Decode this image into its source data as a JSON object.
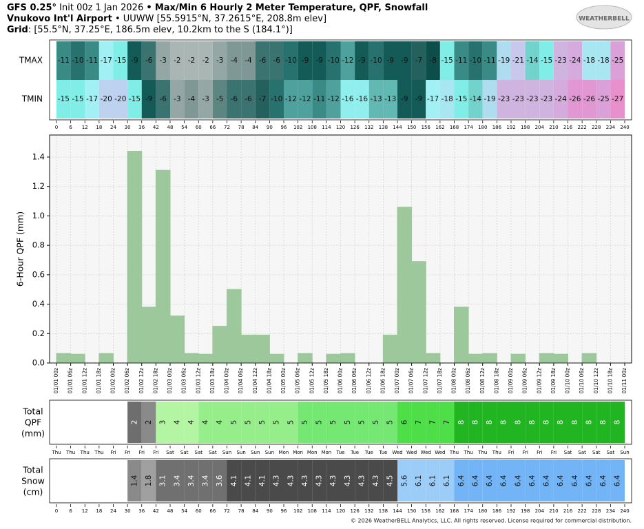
{
  "header": {
    "model": "GFS 0.25°",
    "init": "Init 00z 1 Jan 2026",
    "sep": "•",
    "title": "Max/Min 6 Hourly 2 Meter Temperature, QPF, Snowfall",
    "station": "Vnukovo Int'l Airport",
    "station_details": "UUWW [55.5915°N, 37.2615°E, 208.8m elev]",
    "grid_label": "Grid",
    "grid_details": ": [55.5°N, 37.25°E, 186.5m elev, 10.2km to the S (184.1°)]"
  },
  "logo": "WEATHERBELL",
  "footer": "© 2026 WeatherBELL Analytics, LLC. All rights reserved. License required for commercial distribution.",
  "chart_data": [
    {
      "type": "heatmap",
      "xlim": [
        0,
        240
      ],
      "xticks": [
        0,
        6,
        12,
        18,
        24,
        30,
        36,
        42,
        48,
        54,
        60,
        66,
        72,
        78,
        84,
        90,
        96,
        102,
        108,
        114,
        120,
        126,
        132,
        138,
        144,
        150,
        156,
        162,
        168,
        174,
        180,
        186,
        192,
        198,
        204,
        210,
        216,
        222,
        228,
        234,
        240
      ],
      "series": [
        {
          "name": "TMAX",
          "values": [
            -11,
            -10,
            -11,
            -17,
            -15,
            -9,
            -6,
            -3,
            -2,
            -2,
            -2,
            -3,
            -4,
            -4,
            -6,
            -6,
            -10,
            -9,
            -9,
            -10,
            -12,
            -9,
            -10,
            -9,
            -9,
            -7,
            -8,
            -15,
            -11,
            -10,
            -11,
            -19,
            -21,
            -14,
            -15,
            -23,
            -24,
            -18,
            -18,
            -25
          ]
        },
        {
          "name": "TMIN",
          "values": [
            -15,
            -15,
            -17,
            -20,
            -20,
            -15,
            -9,
            -6,
            -3,
            -4,
            -3,
            -5,
            -6,
            -6,
            -7,
            -10,
            -12,
            -12,
            -11,
            -12,
            -16,
            -16,
            -13,
            -13,
            -9,
            -9,
            -17,
            -18,
            -15,
            -14,
            -19,
            -23,
            -23,
            -23,
            -23,
            -24,
            -26,
            -26,
            -25,
            -27
          ]
        }
      ]
    },
    {
      "type": "bar",
      "ylabel": "6-Hour QPF (mm)",
      "color": "#9dc89b",
      "grid": true,
      "xlim": [
        0,
        240
      ],
      "ylim": [
        0,
        1.55
      ],
      "yticks": [
        {
          "value": 0,
          "label": "0.0"
        },
        0.2,
        0.4,
        0.6,
        0.8,
        {
          "value": 1,
          "label": "1.0"
        },
        1.2,
        1.4
      ],
      "xticks": [
        {
          "value": 0,
          "label": "01/01 00z"
        },
        {
          "value": 6,
          "label": "01/01 06z"
        },
        {
          "value": 12,
          "label": "01/01 12z"
        },
        {
          "value": 18,
          "label": "01/01 18z"
        },
        {
          "value": 24,
          "label": "01/02 00z"
        },
        {
          "value": 30,
          "label": "01/02 06z"
        },
        {
          "value": 36,
          "label": "01/02 12z"
        },
        {
          "value": 42,
          "label": "01/02 18z"
        },
        {
          "value": 48,
          "label": "01/03 00z"
        },
        {
          "value": 54,
          "label": "01/03 06z"
        },
        {
          "value": 60,
          "label": "01/03 12z"
        },
        {
          "value": 66,
          "label": "01/03 18z"
        },
        {
          "value": 72,
          "label": "01/04 00z"
        },
        {
          "value": 78,
          "label": "01/04 06z"
        },
        {
          "value": 84,
          "label": "01/04 12z"
        },
        {
          "value": 90,
          "label": "01/04 18z"
        },
        {
          "value": 96,
          "label": "01/05 00z"
        },
        {
          "value": 102,
          "label": "01/05 06z"
        },
        {
          "value": 108,
          "label": "01/05 12z"
        },
        {
          "value": 114,
          "label": "01/05 18z"
        },
        {
          "value": 120,
          "label": "01/06 00z"
        },
        {
          "value": 126,
          "label": "01/06 06z"
        },
        {
          "value": 132,
          "label": "01/06 12z"
        },
        {
          "value": 138,
          "label": "01/06 18z"
        },
        {
          "value": 144,
          "label": "01/07 00z"
        },
        {
          "value": 150,
          "label": "01/07 06z"
        },
        {
          "value": 156,
          "label": "01/07 12z"
        },
        {
          "value": 162,
          "label": "01/07 18z"
        },
        {
          "value": 168,
          "label": "01/08 00z"
        },
        {
          "value": 174,
          "label": "01/08 06z"
        },
        {
          "value": 180,
          "label": "01/08 12z"
        },
        {
          "value": 186,
          "label": "01/08 18z"
        },
        {
          "value": 192,
          "label": "01/09 00z"
        },
        {
          "value": 198,
          "label": "01/09 06z"
        },
        {
          "value": 204,
          "label": "01/09 12z"
        },
        {
          "value": 210,
          "label": "01/09 18z"
        },
        {
          "value": 216,
          "label": "01/10 00z"
        },
        {
          "value": 222,
          "label": "01/10 06z"
        },
        {
          "value": 228,
          "label": "01/10 12z"
        },
        {
          "value": 234,
          "label": "01/10 18z"
        },
        {
          "value": 240,
          "label": "01/11 00z"
        }
      ],
      "values": [
        0.065,
        0.06,
        0,
        0.065,
        0,
        1.44,
        0.38,
        1.31,
        0.32,
        0.065,
        0.06,
        0.25,
        0.5,
        0.19,
        0.19,
        0.06,
        0,
        0.065,
        0,
        0.06,
        0.065,
        0,
        0,
        0.19,
        1.06,
        0.69,
        0.065,
        0,
        0.38,
        0.06,
        0.065,
        0,
        0.06,
        0,
        0.065,
        0.06,
        0,
        0.065,
        0,
        0
      ]
    },
    {
      "type": "table-row",
      "label": [
        "Total",
        "QPF",
        "(mm)"
      ],
      "xlim": [
        0,
        240
      ],
      "xticks": [
        {
          "value": 0,
          "label": "Thu"
        },
        {
          "value": 6,
          "label": "Thu"
        },
        {
          "value": 12,
          "label": "Thu"
        },
        {
          "value": 18,
          "label": "Thu"
        },
        {
          "value": 24,
          "label": "Fri"
        },
        {
          "value": 30,
          "label": "Fri"
        },
        {
          "value": 36,
          "label": "Fri"
        },
        {
          "value": 42,
          "label": "Fri"
        },
        {
          "value": 48,
          "label": "Sat"
        },
        {
          "value": 54,
          "label": "Sat"
        },
        {
          "value": 60,
          "label": "Sat"
        },
        {
          "value": 66,
          "label": "Sat"
        },
        {
          "value": 72,
          "label": "Sun"
        },
        {
          "value": 78,
          "label": "Sun"
        },
        {
          "value": 84,
          "label": "Sun"
        },
        {
          "value": 90,
          "label": "Sun"
        },
        {
          "value": 96,
          "label": "Mon"
        },
        {
          "value": 102,
          "label": "Mon"
        },
        {
          "value": 108,
          "label": "Mon"
        },
        {
          "value": 114,
          "label": "Mon"
        },
        {
          "value": 120,
          "label": "Tue"
        },
        {
          "value": 126,
          "label": "Tue"
        },
        {
          "value": 132,
          "label": "Tue"
        },
        {
          "value": 138,
          "label": "Tue"
        },
        {
          "value": 144,
          "label": "Wed"
        },
        {
          "value": 150,
          "label": "Wed"
        },
        {
          "value": 156,
          "label": "Wed"
        },
        {
          "value": 162,
          "label": "Wed"
        },
        {
          "value": 168,
          "label": "Thu"
        },
        {
          "value": 174,
          "label": "Thu"
        },
        {
          "value": 180,
          "label": "Thu"
        },
        {
          "value": 186,
          "label": "Thu"
        },
        {
          "value": 192,
          "label": "Fri"
        },
        {
          "value": 198,
          "label": "Fri"
        },
        {
          "value": 204,
          "label": "Fri"
        },
        {
          "value": 210,
          "label": "Fri"
        },
        {
          "value": 216,
          "label": "Sat"
        },
        {
          "value": 222,
          "label": "Sat"
        },
        {
          "value": 228,
          "label": "Sat"
        },
        {
          "value": 234,
          "label": "Sat"
        },
        {
          "value": 240,
          "label": "Sun"
        }
      ],
      "values": [
        null,
        null,
        null,
        null,
        null,
        2,
        2,
        3,
        4,
        4,
        4,
        4,
        5,
        5,
        5,
        5,
        5,
        5,
        5,
        5,
        5,
        5,
        5,
        5,
        6,
        7,
        7,
        7,
        8,
        8,
        8,
        8,
        8,
        8,
        8,
        8,
        8,
        8,
        8,
        8
      ],
      "colors": [
        null,
        null,
        null,
        null,
        null,
        "#6e6e6e",
        "#8a8a8a",
        "#b4f5a4",
        "#b4f5a4",
        "#b4f5a4",
        "#96ee8a",
        "#96ee8a",
        "#96ee8a",
        "#96ee8a",
        "#96ee8a",
        "#96ee8a",
        "#96ee8a",
        "#74e872",
        "#74e872",
        "#74e872",
        "#74e872",
        "#74e872",
        "#74e872",
        "#74e872",
        "#4ede48",
        "#4ede48",
        "#4ede48",
        "#4ede48",
        "#22b522",
        "#22b522",
        "#22b522",
        "#22b522",
        "#22b522",
        "#22b522",
        "#22b522",
        "#22b522",
        "#22b522",
        "#22b522",
        "#22b522",
        "#22b522"
      ]
    },
    {
      "type": "table-row",
      "label": [
        "Total",
        "Snow",
        "(cm)"
      ],
      "xlim": [
        0,
        240
      ],
      "xticks": [
        0,
        6,
        12,
        18,
        24,
        30,
        36,
        42,
        48,
        54,
        60,
        66,
        72,
        78,
        84,
        90,
        96,
        102,
        108,
        114,
        120,
        126,
        132,
        138,
        144,
        150,
        156,
        162,
        168,
        174,
        180,
        186,
        192,
        198,
        204,
        210,
        216,
        222,
        228,
        234,
        240
      ],
      "values": [
        null,
        null,
        null,
        null,
        null,
        1.4,
        1.8,
        3.1,
        3.4,
        3.4,
        3.4,
        3.6,
        4.1,
        4.1,
        4.1,
        4.3,
        4.3,
        4.3,
        4.3,
        4.3,
        4.3,
        4.3,
        4.3,
        4.5,
        5.6,
        6.1,
        6.1,
        6.1,
        6.4,
        6.4,
        6.4,
        6.4,
        6.4,
        6.4,
        6.4,
        6.4,
        6.4,
        6.4,
        6.4,
        6.4
      ],
      "colors": [
        null,
        null,
        null,
        null,
        null,
        "#8a8a8a",
        "#a0a0a0",
        "#707070",
        "#707070",
        "#707070",
        "#707070",
        "#707070",
        "#4a4a4a",
        "#4a4a4a",
        "#4a4a4a",
        "#4a4a4a",
        "#4a4a4a",
        "#4a4a4a",
        "#4a4a4a",
        "#4a4a4a",
        "#4a4a4a",
        "#4a4a4a",
        "#4a4a4a",
        "#4a4a4a",
        "#9ccdf8",
        "#9ccdf8",
        "#9ccdf8",
        "#9ccdf8",
        "#72b4f6",
        "#72b4f6",
        "#72b4f6",
        "#72b4f6",
        "#72b4f6",
        "#72b4f6",
        "#72b4f6",
        "#72b4f6",
        "#72b4f6",
        "#72b4f6",
        "#72b4f6",
        "#72b4f6"
      ]
    }
  ]
}
